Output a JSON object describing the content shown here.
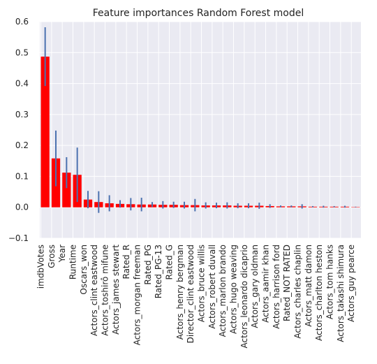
{
  "chart_data": {
    "type": "bar",
    "title": "Feature importances Random Forest model",
    "xlabel": "",
    "ylabel": "",
    "ylim": [
      -0.1,
      0.6
    ],
    "yticks": [
      -0.1,
      0.0,
      0.1,
      0.2,
      0.3,
      0.4,
      0.5,
      0.6
    ],
    "ytick_labels": [
      "−0.1",
      "0.0",
      "0.1",
      "0.2",
      "0.3",
      "0.4",
      "0.5",
      "0.6"
    ],
    "grid": true,
    "bar_color": "#ff0000",
    "error_color": "#4c72b0",
    "background_color": "#eaeaf2",
    "categories": [
      "imdbVotes",
      "Gross",
      "Year",
      "Runtime",
      "Oscars_won",
      "Actors_clint eastwood",
      "Actors_toshirô mifune",
      "Actors_james stewart",
      "Rated_R",
      "Actors_morgan freeman",
      "Rated_PG",
      "Rated_PG-13",
      "Rated_G",
      "Actors_henry bergman",
      "Director_clint eastwood",
      "Actors_bruce willis",
      "Actors_robert duvall",
      "Actors_marlon brando",
      "Actors_hugo weaving",
      "Actors_leonardo dicaprio",
      "Actors_gary oldman",
      "Actors_aamir khan",
      "Actors_harrison ford",
      "Rated_NOT RATED",
      "Actors_charles chaplin",
      "Actors_matt damon",
      "Actors_charlton heston",
      "Actors_tom hanks",
      "Actors_takashi shimura",
      "Actors_guy pearce"
    ],
    "values": [
      0.487,
      0.158,
      0.112,
      0.105,
      0.025,
      0.017,
      0.013,
      0.011,
      0.01,
      0.009,
      0.009,
      0.008,
      0.008,
      0.007,
      0.007,
      0.006,
      0.006,
      0.006,
      0.005,
      0.005,
      0.005,
      0.004,
      0.003,
      0.003,
      0.003,
      0.002,
      0.002,
      0.002,
      0.002,
      0.001
    ],
    "errors": [
      0.095,
      0.09,
      0.05,
      0.088,
      0.028,
      0.035,
      0.026,
      0.012,
      0.02,
      0.022,
      0.008,
      0.012,
      0.01,
      0.011,
      0.02,
      0.01,
      0.009,
      0.01,
      0.008,
      0.008,
      0.01,
      0.006,
      0.003,
      0.003,
      0.007,
      0.002,
      0.003,
      0.002,
      0.003,
      0.001
    ]
  }
}
